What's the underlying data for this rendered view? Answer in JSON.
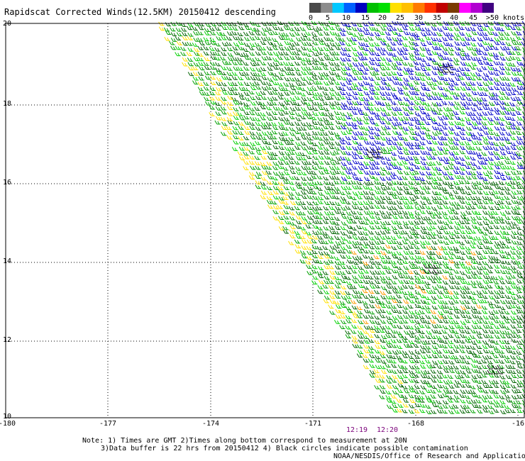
{
  "header": {
    "title": "Rapidscat Corrected Winds(12.5KM) 20150412 descending"
  },
  "colorbar": {
    "colors": [
      "#4a4a4a",
      "#8c8c8c",
      "#00c8ff",
      "#0060ff",
      "#0000c0",
      "#00c000",
      "#00e000",
      "#ffe000",
      "#ffc000",
      "#ff7a00",
      "#ff3000",
      "#c00000",
      "#7a3a00",
      "#ff00ff",
      "#b000d0",
      "#400080"
    ],
    "labels": [
      "0",
      "5",
      "10",
      "15",
      "20",
      "25",
      "30",
      "35",
      "40",
      "45",
      ">50 knots"
    ]
  },
  "axes": {
    "y_ticks": [
      "20",
      "18",
      "16",
      "14",
      "12",
      "10"
    ],
    "x_ticks": [
      "-180",
      "-177",
      "-174",
      "-171",
      "-168",
      "-16"
    ],
    "y_range": [
      10,
      20
    ],
    "x_range": [
      -180,
      -165
    ]
  },
  "times": [
    "12:19",
    "12:20"
  ],
  "notes": {
    "line1": "Note: 1) Times are GMT 2)Times along bottom correspond to measurement at 20N",
    "line2": "3)Data buffer is 22 hrs from 20150412 4) Black circles indicate possible contamination",
    "line3": "NOAA/NESDIS/Office of Research and Applications"
  },
  "swath_colors": {
    "dark_green": "#006400",
    "green": "#00a000",
    "light_green": "#00d000",
    "blue": "#0000c8",
    "yellow": "#ffe000",
    "orange": "#ff9a00",
    "black": "#000000"
  }
}
